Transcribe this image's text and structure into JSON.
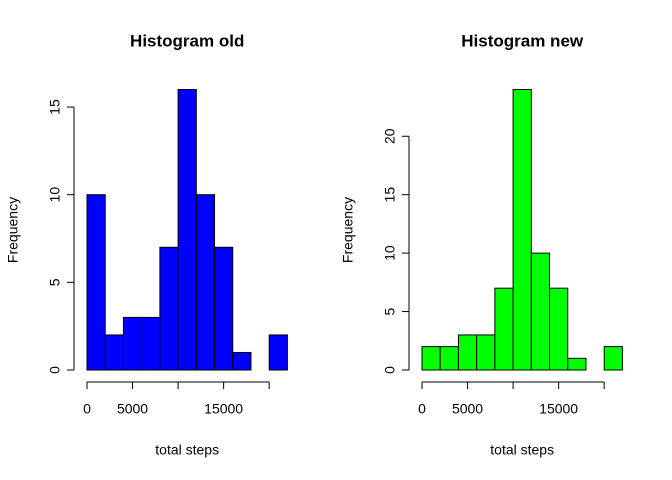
{
  "chart_data": [
    {
      "type": "histogram",
      "title": "Histogram old",
      "xlabel": "total steps",
      "ylabel": "Frequency",
      "color": "#0000ff",
      "bins": [
        0,
        2000,
        4000,
        6000,
        8000,
        10000,
        12000,
        14000,
        16000,
        18000,
        20000,
        22000
      ],
      "counts": [
        10,
        2,
        3,
        3,
        7,
        16,
        10,
        7,
        1,
        0,
        2
      ],
      "xlim": [
        0,
        22000
      ],
      "xticks": [
        0,
        5000,
        {
          "value": 10000,
          "label": null
        },
        15000,
        {
          "value": 20000,
          "label": null
        }
      ],
      "ylim": [
        0,
        16
      ],
      "yticks": [
        0,
        5,
        10,
        15
      ]
    },
    {
      "type": "histogram",
      "title": "Histogram new",
      "xlabel": "total steps",
      "ylabel": "Frequency",
      "color": "#00ff00",
      "bins": [
        0,
        2000,
        4000,
        6000,
        8000,
        10000,
        12000,
        14000,
        16000,
        18000,
        20000,
        22000
      ],
      "counts": [
        2,
        2,
        3,
        3,
        7,
        24,
        10,
        7,
        1,
        0,
        2
      ],
      "xlim": [
        0,
        22000
      ],
      "xticks": [
        0,
        5000,
        {
          "value": 10000,
          "label": null
        },
        15000,
        {
          "value": 20000,
          "label": null
        }
      ],
      "ylim": [
        0,
        24
      ],
      "yticks": [
        0,
        5,
        10,
        15,
        20
      ]
    }
  ]
}
